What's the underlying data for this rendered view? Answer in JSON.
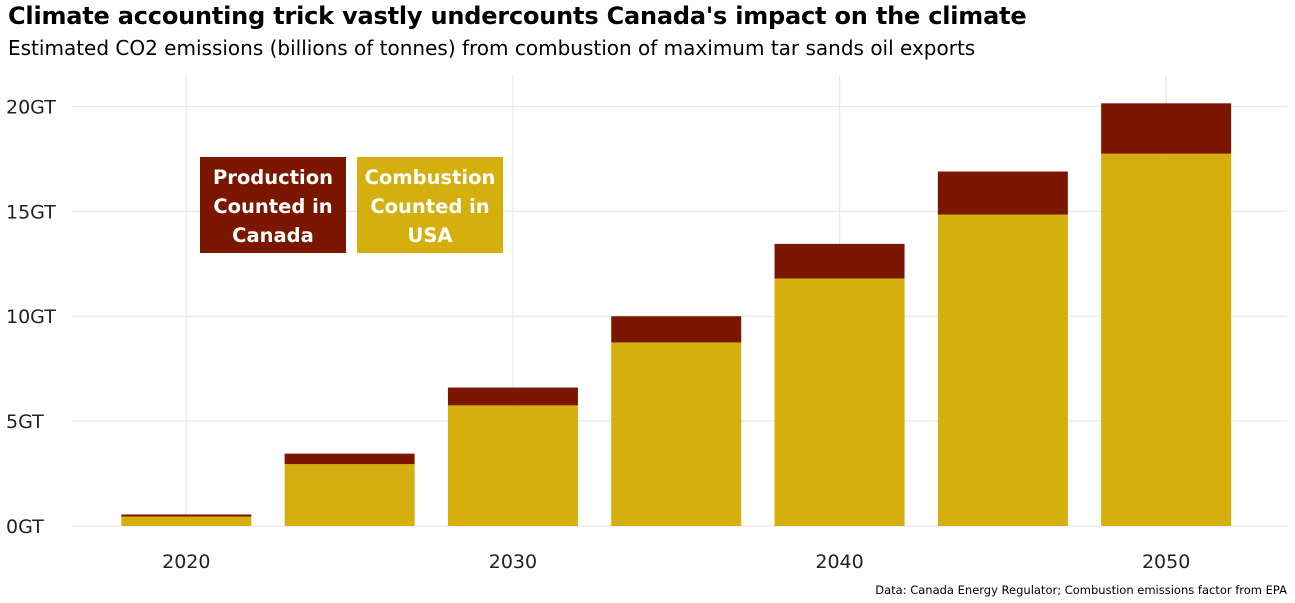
{
  "chart_data": {
    "type": "bar",
    "stacked": true,
    "title": "Climate accounting trick vastly undercounts Canada's impact on the climate",
    "subtitle": "Estimated CO2 emissions (billions of tonnes) from combustion of maximum tar sands oil exports",
    "caption": "Data: Canada Energy Regulator; Combustion emissions factor from EPA",
    "x": [
      2020,
      2025,
      2030,
      2035,
      2040,
      2045,
      2050
    ],
    "xlim": [
      2016.5,
      2053.7
    ],
    "xticks": [
      2020,
      2030,
      2040,
      2050
    ],
    "xtick_labels": [
      "2020",
      "2030",
      "2040",
      "2050"
    ],
    "ylim": [
      0,
      21.5
    ],
    "yticks": [
      0,
      5,
      10,
      15,
      20
    ],
    "ytick_labels": [
      "0GT",
      "5GT",
      "10GT",
      "15GT",
      "20GT"
    ],
    "grid": true,
    "legend_placement": "top-left",
    "series": [
      {
        "name": "Combustion Counted in USA",
        "label_lines": [
          "Combustion",
          "Counted in",
          "USA"
        ],
        "color": "#D4AF0D",
        "values": [
          0.45,
          2.95,
          5.75,
          8.75,
          11.8,
          14.85,
          17.75
        ]
      },
      {
        "name": "Production Counted in Canada",
        "label_lines": [
          "Production",
          "Counted in",
          "Canada"
        ],
        "color": "#7B1700",
        "values": [
          0.1,
          0.5,
          0.85,
          1.25,
          1.65,
          2.05,
          2.4
        ]
      }
    ]
  }
}
